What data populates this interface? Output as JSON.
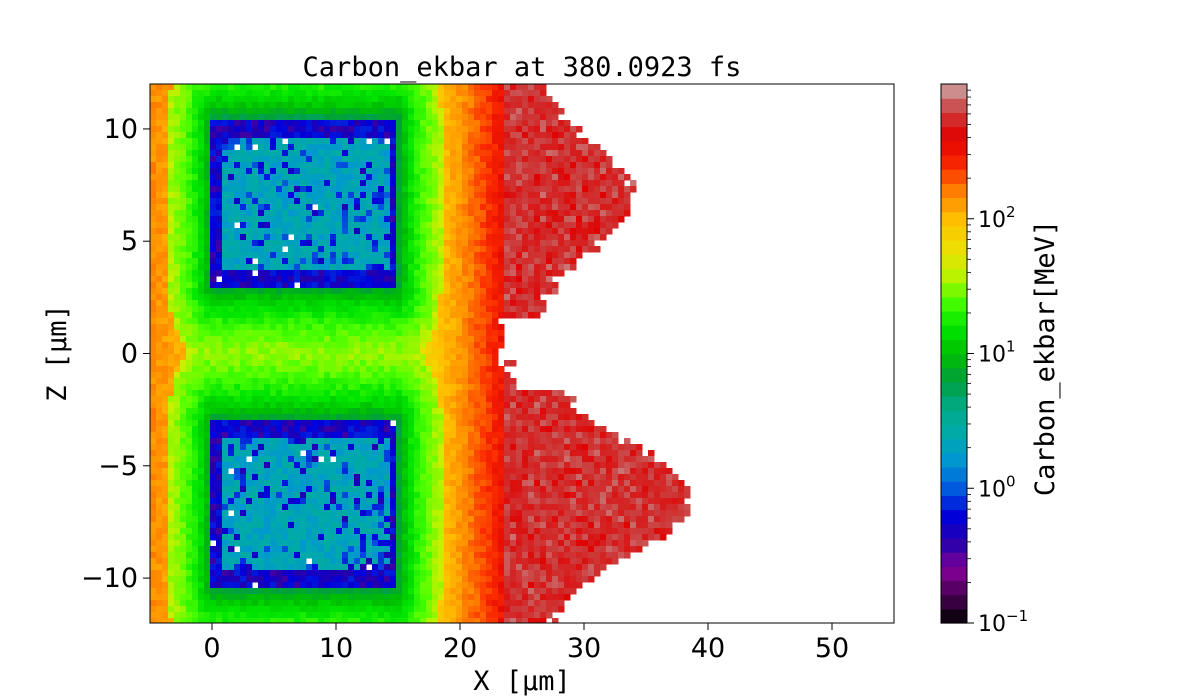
{
  "chart_data": {
    "type": "heatmap",
    "title": "Carbon_ekbar at 380.0923 fs",
    "xlabel": "X  [μm]",
    "ylabel": "Z  [μm]",
    "xlim": [
      -5,
      55
    ],
    "ylim": [
      -12,
      12
    ],
    "x_ticks": [
      0,
      10,
      20,
      30,
      40,
      50
    ],
    "x_tick_labels": [
      "0",
      "10",
      "20",
      "30",
      "40",
      "50"
    ],
    "y_ticks": [
      10,
      5,
      0,
      -5,
      -10
    ],
    "y_tick_labels": [
      "10",
      "5",
      "0",
      "−5",
      "−10"
    ],
    "colorbar": {
      "label": "Carbon_ekbar[MeV]",
      "scale": "log",
      "range": [
        0.1,
        1000
      ],
      "ticks": [
        {
          "value": 100,
          "base": "10",
          "exp": "2"
        },
        {
          "value": 10,
          "base": "10",
          "exp": "1"
        },
        {
          "value": 1,
          "base": "10",
          "exp": "0"
        },
        {
          "value": 0.1,
          "base": "10",
          "exp": "−1"
        }
      ],
      "levels": 38,
      "colormap": "nipy_spectral"
    },
    "structures": [
      {
        "kind": "target-block",
        "x": [
          0,
          15
        ],
        "z": [
          3,
          10.5
        ],
        "value_MeV": 1.5
      },
      {
        "kind": "target-block",
        "x": [
          0,
          15
        ],
        "z": [
          -10.5,
          -3
        ],
        "value_MeV": 1.5
      },
      {
        "kind": "surrounding-halo",
        "x": [
          -2,
          17
        ],
        "z": [
          -12,
          12
        ],
        "value_MeV": 20
      },
      {
        "kind": "background-gradient",
        "x": [
          -5,
          31
        ],
        "low_MeV": 20,
        "high_MeV": 600
      },
      {
        "kind": "ion-front",
        "lobes": [
          {
            "z_center": 7,
            "x_tip": 34
          },
          {
            "z_center": -6.5,
            "x_tip": 38.5
          }
        ],
        "gap_z": 1.5
      }
    ],
    "grid": false
  }
}
